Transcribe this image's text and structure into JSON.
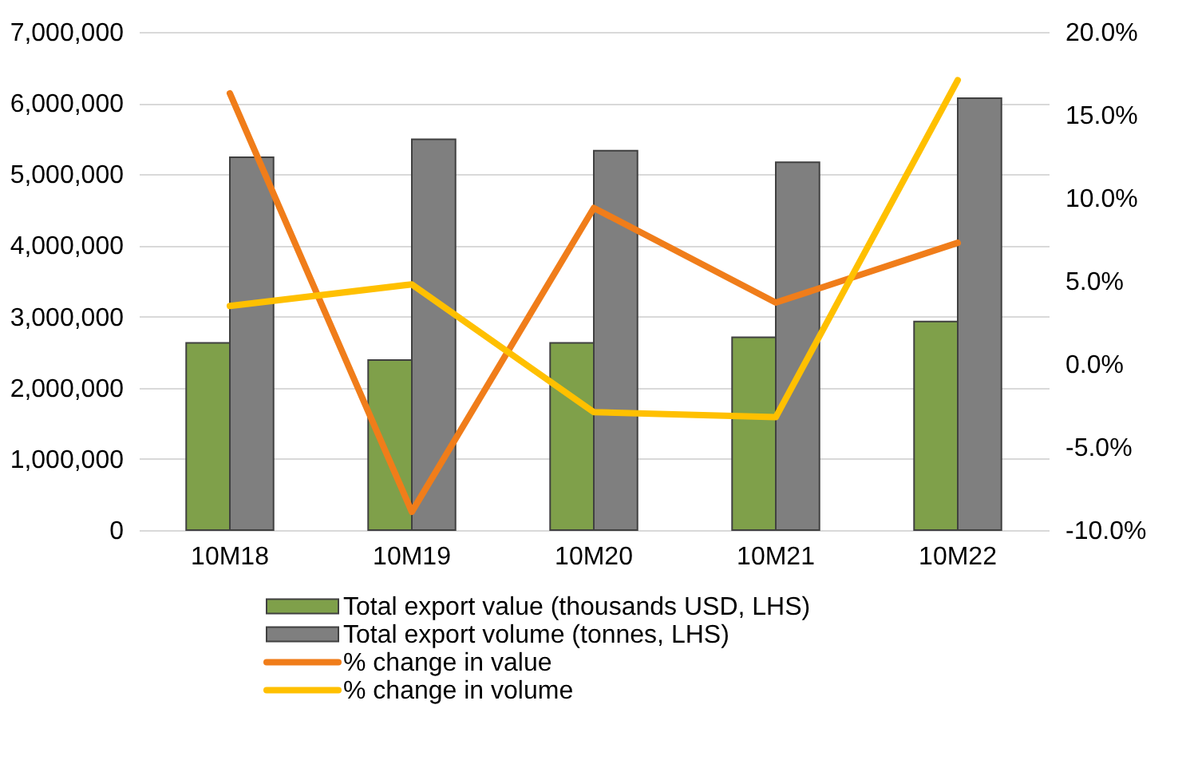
{
  "chart_data": {
    "type": "bar",
    "categories": [
      "10M18",
      "10M19",
      "10M20",
      "10M21",
      "10M22"
    ],
    "series": [
      {
        "name": "Total export value (thousands USD, LHS)",
        "color": "#7fa04a",
        "values": [
          2630000,
          2390000,
          2630000,
          2710000,
          2930000
        ]
      },
      {
        "name": "Total export volume (tonnes, LHS)",
        "color": "#7f7f7f",
        "values": [
          5240000,
          5490000,
          5330000,
          5170000,
          6070000
        ]
      },
      {
        "name": "% change in value",
        "type": "line",
        "axis": "y2",
        "color": "#f07d1a",
        "values": [
          16.3,
          -8.9,
          9.4,
          3.7,
          7.3
        ]
      },
      {
        "name": "% change in volume",
        "type": "line",
        "axis": "y2",
        "color": "#ffc000",
        "values": [
          3.5,
          4.8,
          -2.9,
          -3.2,
          17.1
        ]
      }
    ],
    "ylim": [
      0,
      7000000
    ],
    "yticks": [
      0,
      {
        "value": 1000000,
        "label": "1,000,000"
      },
      {
        "value": 2000000,
        "label": "2,000,000"
      },
      {
        "value": 3000000,
        "label": "3,000,000"
      },
      {
        "value": 4000000,
        "label": "4,000,000"
      },
      {
        "value": 5000000,
        "label": "5,000,000"
      },
      {
        "value": 6000000,
        "label": "6,000,000"
      },
      {
        "value": 7000000,
        "label": "7,000,000"
      }
    ],
    "y2lim": [
      -10,
      20
    ],
    "y2ticks": [
      {
        "value": -10,
        "label": "-10.0%"
      },
      {
        "value": -5,
        "label": "-5.0%"
      },
      {
        "value": 0,
        "label": "0.0%"
      },
      {
        "value": 5,
        "label": "5.0%"
      },
      {
        "value": 10,
        "label": "10.0%"
      },
      {
        "value": 15,
        "label": "15.0%"
      },
      {
        "value": 20,
        "label": "20.0%"
      }
    ],
    "grid": "y",
    "legend": "bottom",
    "marker": "none",
    "line_style": "solid"
  }
}
